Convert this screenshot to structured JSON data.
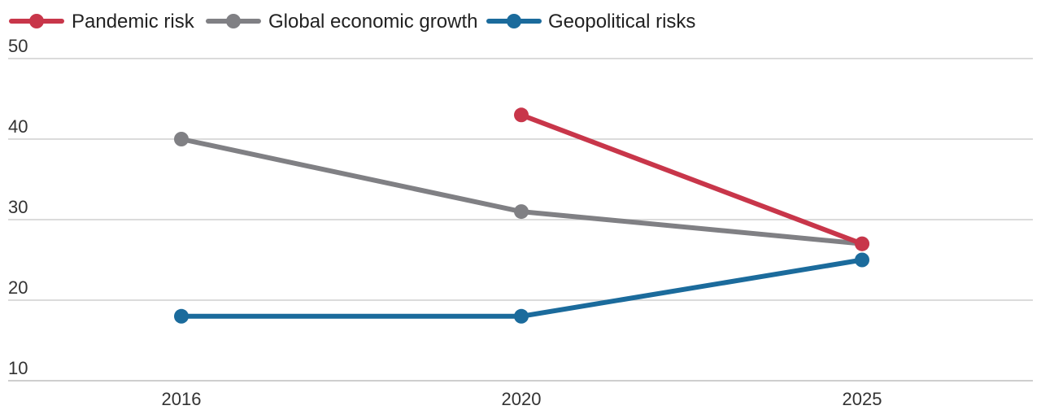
{
  "chart_data": {
    "type": "line",
    "title": "",
    "xlabel": "",
    "ylabel": "",
    "categories": [
      "2016",
      "2020",
      "2025"
    ],
    "ylim": [
      10,
      50
    ],
    "yticks": [
      10,
      20,
      30,
      40,
      50
    ],
    "grid": true,
    "legend_position": "top-left",
    "series": [
      {
        "name": "Pandemic risk",
        "color": "#c8364a",
        "values": [
          null,
          43,
          27
        ]
      },
      {
        "name": "Global economic growth",
        "color": "#808084",
        "values": [
          40,
          31,
          27
        ]
      },
      {
        "name": "Geopolitical risks",
        "color": "#1b6b9c",
        "values": [
          18,
          18,
          25
        ]
      }
    ]
  }
}
